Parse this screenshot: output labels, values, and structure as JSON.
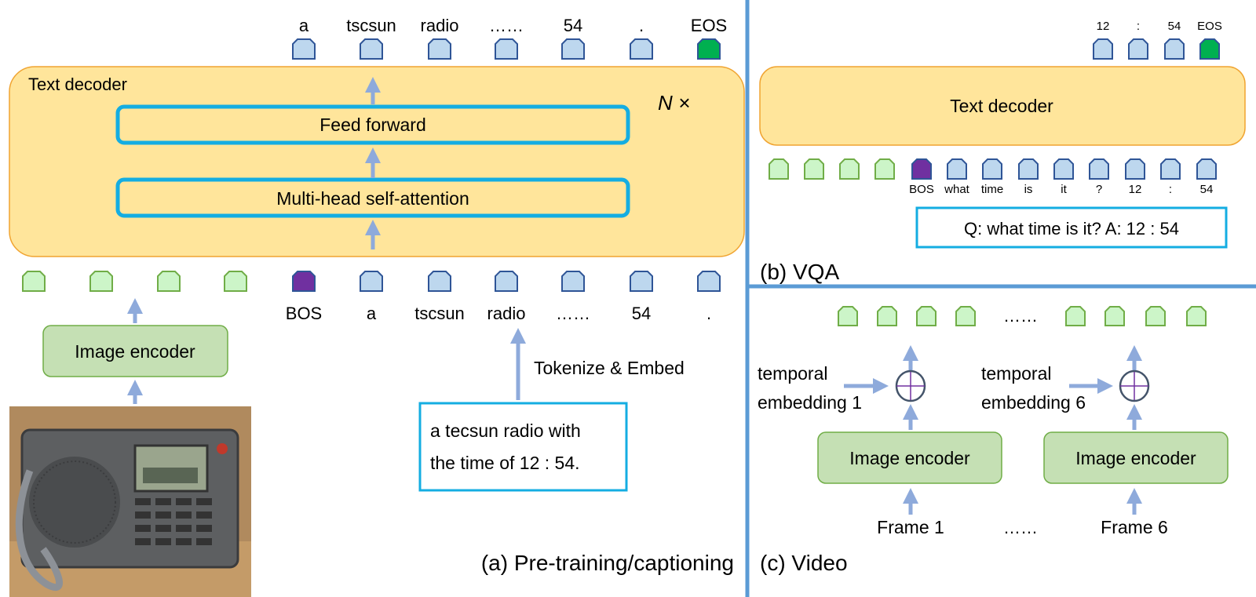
{
  "colors": {
    "decoder_fill": "#ffe59b",
    "decoder_stroke": "#f0a431",
    "inner_stroke": "#14ade2",
    "encoder_fill": "#c5e0b4",
    "encoder_stroke": "#70ad47",
    "token_text": "#bdd7ee",
    "token_text_stroke": "#2f5597",
    "token_image": "#ccf5c8",
    "token_image_stroke": "#70ad47",
    "token_bos": "#7030a0",
    "token_eos": "#00b050",
    "arrow": "#8eaadb",
    "divider": "#5b9bd5"
  },
  "pretrain": {
    "decoder_label": "Text decoder",
    "repeat_label": "N ×",
    "feed_forward": "Feed forward",
    "attention": "Multi-head self-attention",
    "image_encoder": "Image encoder",
    "tokenize_label": "Tokenize & Embed",
    "caption_lines": [
      "a tecsun radio with",
      "the time of 12 : 54."
    ],
    "output_tokens": [
      {
        "label": "a",
        "kind": "text"
      },
      {
        "label": "tscsun",
        "kind": "text"
      },
      {
        "label": "radio",
        "kind": "text"
      },
      {
        "label": "……",
        "kind": "text"
      },
      {
        "label": "54",
        "kind": "text"
      },
      {
        "label": ".",
        "kind": "text"
      },
      {
        "label": "EOS",
        "kind": "eos"
      }
    ],
    "input_tokens": [
      {
        "label": "",
        "kind": "image"
      },
      {
        "label": "",
        "kind": "image"
      },
      {
        "label": "",
        "kind": "image"
      },
      {
        "label": "",
        "kind": "image"
      },
      {
        "label": "BOS",
        "kind": "bos"
      },
      {
        "label": "a",
        "kind": "text"
      },
      {
        "label": "tscsun",
        "kind": "text"
      },
      {
        "label": "radio",
        "kind": "text"
      },
      {
        "label": "……",
        "kind": "text"
      },
      {
        "label": "54",
        "kind": "text"
      },
      {
        "label": ".",
        "kind": "text"
      }
    ],
    "panel_caption": "(a) Pre-training/captioning"
  },
  "vqa": {
    "decoder_label": "Text decoder",
    "output_tokens": [
      {
        "label": "12",
        "kind": "text"
      },
      {
        "label": ":",
        "kind": "text"
      },
      {
        "label": "54",
        "kind": "text"
      },
      {
        "label": "EOS",
        "kind": "eos"
      }
    ],
    "input_tokens": [
      {
        "label": "",
        "kind": "image"
      },
      {
        "label": "",
        "kind": "image"
      },
      {
        "label": "",
        "kind": "image"
      },
      {
        "label": "",
        "kind": "image"
      },
      {
        "label": "BOS",
        "kind": "bos"
      },
      {
        "label": "what",
        "kind": "text"
      },
      {
        "label": "time",
        "kind": "text"
      },
      {
        "label": "is",
        "kind": "text"
      },
      {
        "label": "it",
        "kind": "text"
      },
      {
        "label": "?",
        "kind": "text"
      },
      {
        "label": "12",
        "kind": "text"
      },
      {
        "label": ":",
        "kind": "text"
      },
      {
        "label": "54",
        "kind": "text"
      }
    ],
    "qa_text": "Q: what time is it? A: 12 : 54",
    "panel_caption": "(b) VQA"
  },
  "video": {
    "ellipsis": "……",
    "temporal_1": [
      "temporal",
      "embedding 1"
    ],
    "temporal_6": [
      "temporal",
      "embedding 6"
    ],
    "image_encoder": "Image encoder",
    "frame_1": "Frame 1",
    "frame_6": "Frame 6",
    "panel_caption": "(c) Video"
  }
}
